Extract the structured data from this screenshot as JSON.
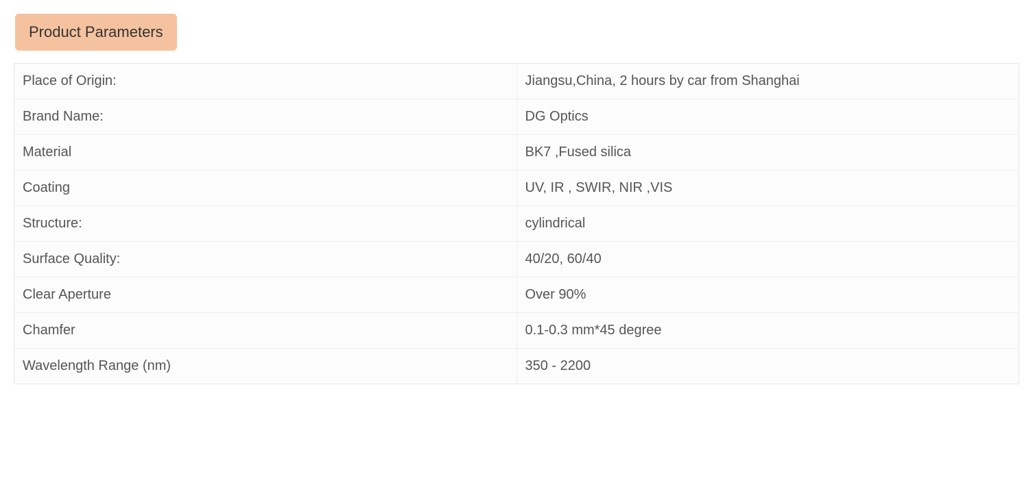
{
  "heading": {
    "label": "Product Parameters",
    "background_color": "#f5c29f",
    "text_color": "#333333",
    "font_size": 22,
    "border_radius": 6
  },
  "table": {
    "border_color": "#e6e6e6",
    "row_border_color": "#eeeeee",
    "cell_background": "#fcfcfc",
    "text_color": "#555555",
    "font_size": 20,
    "rows": [
      {
        "label": "Place of Origin:",
        "value": "Jiangsu,China,  2 hours by car from Shanghai"
      },
      {
        "label": "Brand Name:",
        "value": "DG Optics"
      },
      {
        "label": "Material",
        "value": "BK7 ,Fused silica"
      },
      {
        "label": "Coating",
        "value": "UV, IR , SWIR, NIR ,VIS"
      },
      {
        "label": "Structure:",
        "value": "cylindrical"
      },
      {
        "label": "Surface Quality:",
        "value": "40/20, 60/40"
      },
      {
        "label": "Clear Aperture",
        "value": "Over 90%"
      },
      {
        "label": "Chamfer",
        "value": "0.1-0.3 mm*45 degree"
      },
      {
        "label": "Wavelength Range (nm)",
        "value": "350 - 2200"
      }
    ]
  }
}
